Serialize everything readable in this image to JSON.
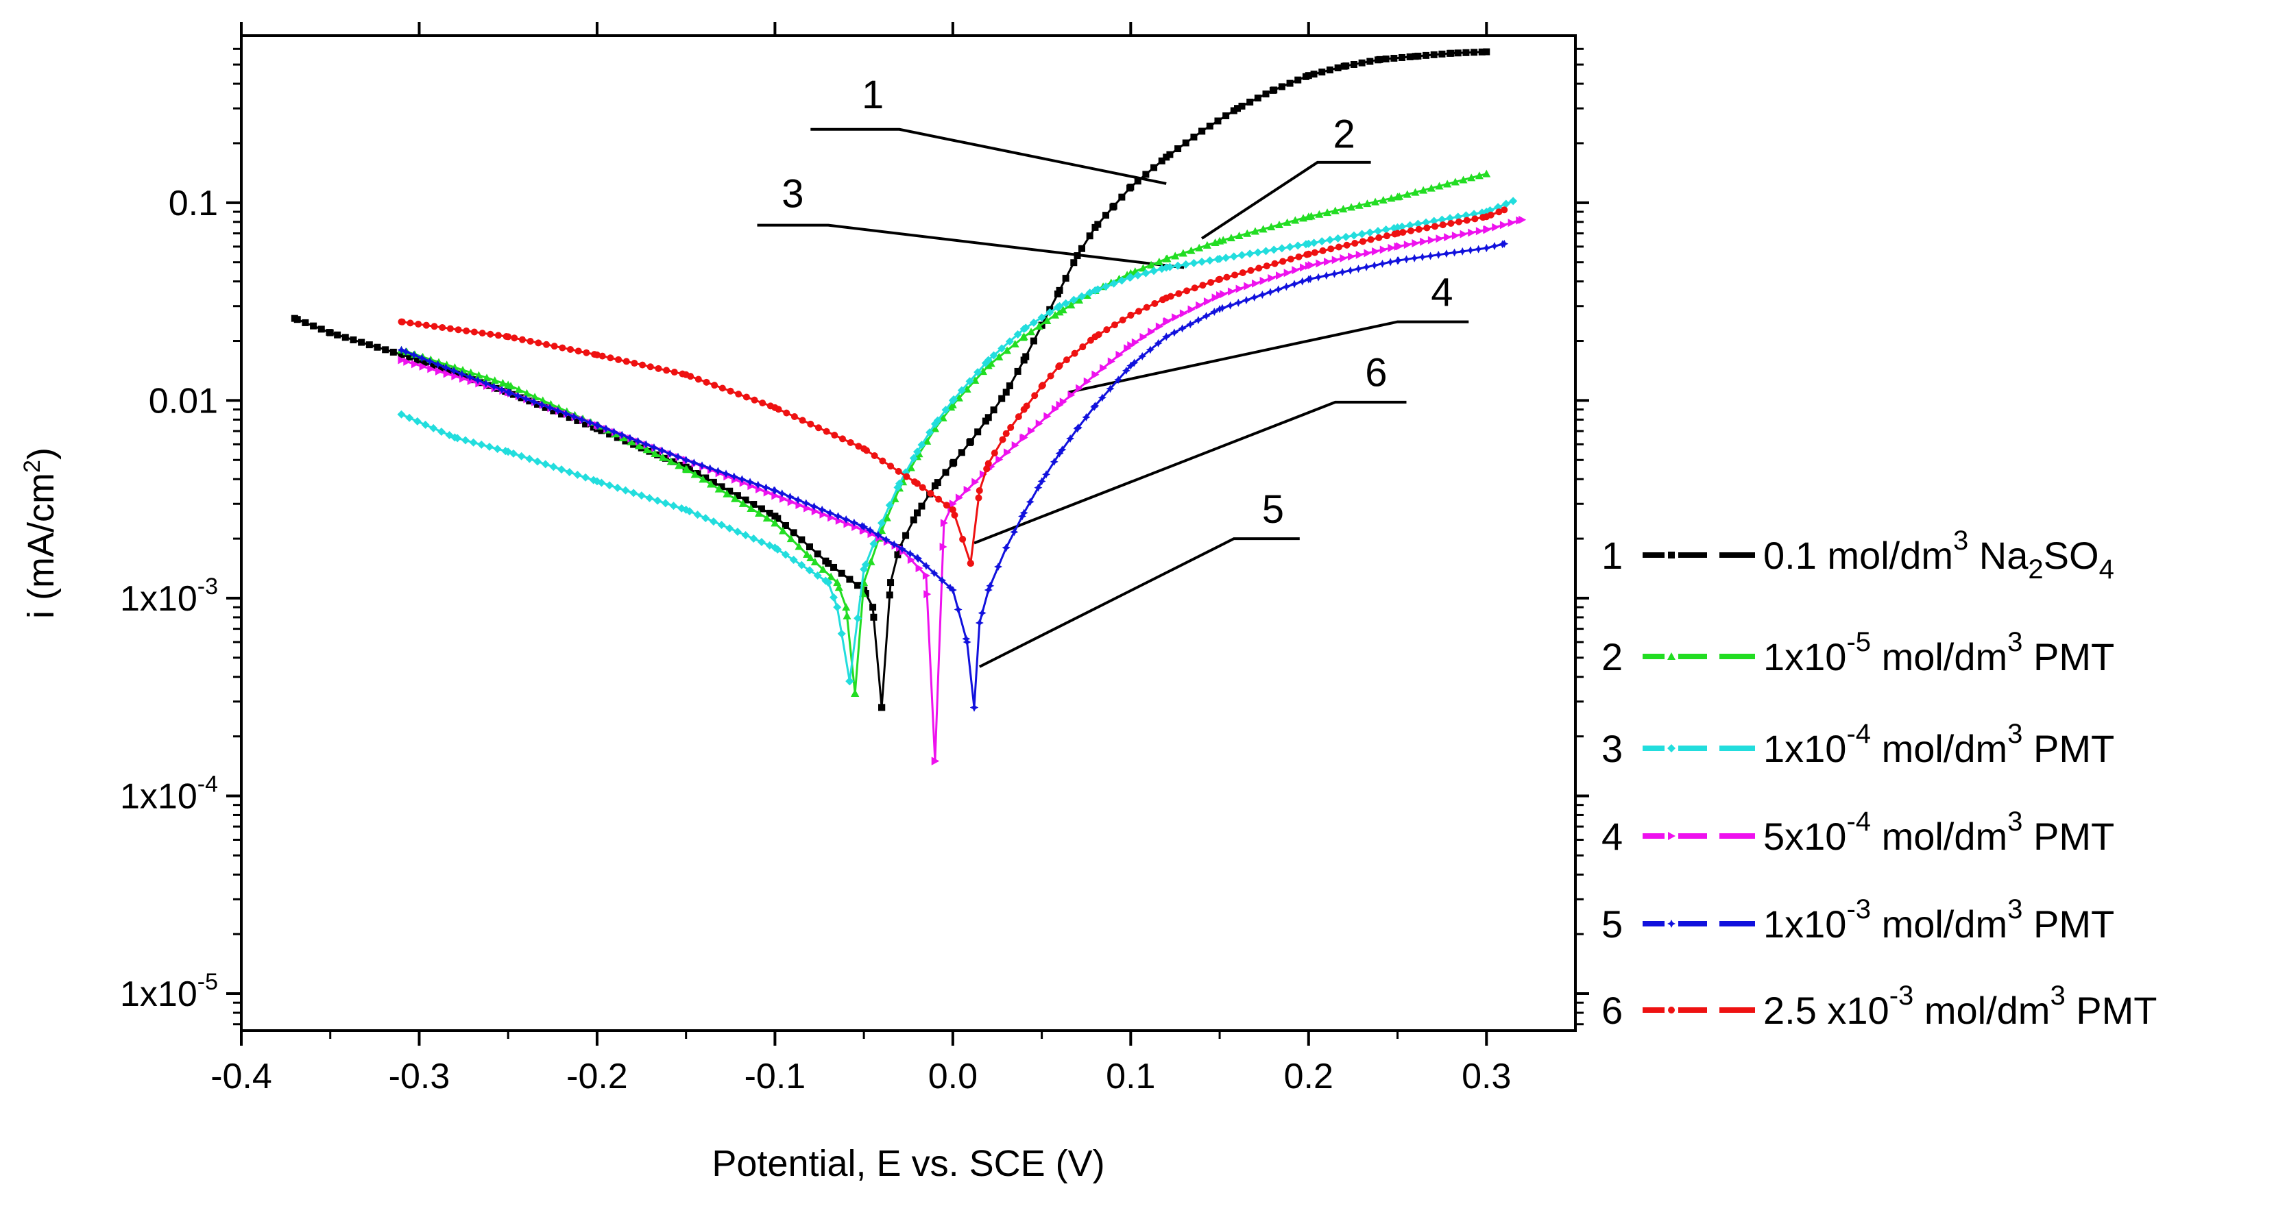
{
  "chart_data": {
    "type": "line",
    "title": "",
    "xlabel": "Potential, E vs. SCE (V)",
    "ylabel_main": "i (mA/cm",
    "ylabel_sup": "2",
    "ylabel_close": ")",
    "xlim": [
      -0.4,
      0.35
    ],
    "ylim": [
      6.5e-06,
      0.7
    ],
    "yscale": "log",
    "x_ticks": [
      {
        "v": -0.4,
        "label": "-0.4"
      },
      {
        "v": -0.3,
        "label": "-0.3"
      },
      {
        "v": -0.2,
        "label": "-0.2"
      },
      {
        "v": -0.1,
        "label": "-0.1"
      },
      {
        "v": 0.0,
        "label": "0.0"
      },
      {
        "v": 0.1,
        "label": "0.1"
      },
      {
        "v": 0.2,
        "label": "0.2"
      },
      {
        "v": 0.3,
        "label": "0.3"
      }
    ],
    "y_ticks": [
      {
        "v": 0.1,
        "text": "0.1",
        "sup": ""
      },
      {
        "v": 0.01,
        "text": "0.01",
        "sup": ""
      },
      {
        "v": 0.001,
        "text": "1x10",
        "sup": "-3"
      },
      {
        "v": 0.0001,
        "text": "1x10",
        "sup": "-4"
      },
      {
        "v": 1e-05,
        "text": "1x10",
        "sup": "-5"
      }
    ],
    "series": [
      {
        "id": "1",
        "color": "#000000",
        "marker": "square",
        "legend": [
          {
            "t": "1 "
          },
          {
            "t": "0.1 mol/dm"
          },
          {
            "t": "3",
            "sup": true
          },
          {
            "t": " Na"
          },
          {
            "t": "2",
            "sub": true
          },
          {
            "t": "SO"
          },
          {
            "t": "4",
            "sub": true
          }
        ],
        "ecorr": -0.04,
        "imin": 0.00028,
        "anodic": [
          [
            -0.04,
            0.00028
          ],
          [
            -0.035,
            0.0012
          ],
          [
            -0.03,
            0.0018
          ],
          [
            -0.02,
            0.0027
          ],
          [
            -0.01,
            0.0037
          ],
          [
            0.0,
            0.0048
          ],
          [
            0.01,
            0.0062
          ],
          [
            0.02,
            0.0082
          ],
          [
            0.03,
            0.011
          ],
          [
            0.04,
            0.016
          ],
          [
            0.05,
            0.024
          ],
          [
            0.06,
            0.036
          ],
          [
            0.07,
            0.054
          ],
          [
            0.08,
            0.075
          ],
          [
            0.09,
            0.095
          ],
          [
            0.1,
            0.12
          ],
          [
            0.12,
            0.17
          ],
          [
            0.14,
            0.23
          ],
          [
            0.16,
            0.3
          ],
          [
            0.18,
            0.37
          ],
          [
            0.2,
            0.44
          ],
          [
            0.22,
            0.49
          ],
          [
            0.24,
            0.53
          ],
          [
            0.26,
            0.55
          ],
          [
            0.28,
            0.57
          ],
          [
            0.3,
            0.58
          ]
        ],
        "cathodic": [
          [
            -0.04,
            0.00028
          ],
          [
            -0.045,
            0.0009
          ],
          [
            -0.05,
            0.0011
          ],
          [
            -0.07,
            0.0015
          ],
          [
            -0.1,
            0.0026
          ],
          [
            -0.15,
            0.0046
          ],
          [
            -0.2,
            0.0072
          ],
          [
            -0.25,
            0.011
          ],
          [
            -0.3,
            0.016
          ],
          [
            -0.35,
            0.022
          ],
          [
            -0.37,
            0.026
          ]
        ]
      },
      {
        "id": "2",
        "color": "#22dd22",
        "marker": "triangle",
        "legend": [
          {
            "t": "2 "
          },
          {
            "t": "1x10"
          },
          {
            "t": "-5",
            "sup": true
          },
          {
            "t": " mol/dm"
          },
          {
            "t": "3",
            "sup": true
          },
          {
            "t": " PMT"
          }
        ],
        "ecorr": -0.055,
        "imin": 0.00033,
        "anodic": [
          [
            -0.055,
            0.00033
          ],
          [
            -0.05,
            0.0012
          ],
          [
            -0.04,
            0.0022
          ],
          [
            -0.03,
            0.0036
          ],
          [
            -0.02,
            0.0052
          ],
          [
            -0.01,
            0.0072
          ],
          [
            0.0,
            0.0095
          ],
          [
            0.02,
            0.015
          ],
          [
            0.04,
            0.021
          ],
          [
            0.06,
            0.028
          ],
          [
            0.08,
            0.036
          ],
          [
            0.1,
            0.044
          ],
          [
            0.12,
            0.052
          ],
          [
            0.15,
            0.064
          ],
          [
            0.2,
            0.085
          ],
          [
            0.25,
            0.107
          ],
          [
            0.3,
            0.14
          ]
        ],
        "cathodic": [
          [
            -0.055,
            0.00033
          ],
          [
            -0.06,
            0.0009
          ],
          [
            -0.065,
            0.0012
          ],
          [
            -0.08,
            0.0016
          ],
          [
            -0.1,
            0.0024
          ],
          [
            -0.15,
            0.0045
          ],
          [
            -0.2,
            0.0075
          ],
          [
            -0.25,
            0.012
          ],
          [
            -0.31,
            0.018
          ]
        ]
      },
      {
        "id": "3",
        "color": "#22dddd",
        "marker": "diamond",
        "legend": [
          {
            "t": "3 "
          },
          {
            "t": "1x10"
          },
          {
            "t": "-4",
            "sup": true
          },
          {
            "t": " mol/dm"
          },
          {
            "t": "3",
            "sup": true
          },
          {
            "t": " PMT"
          }
        ],
        "ecorr": -0.058,
        "imin": 0.00038,
        "anodic": [
          [
            -0.058,
            0.00038
          ],
          [
            -0.05,
            0.0014
          ],
          [
            -0.04,
            0.0024
          ],
          [
            -0.03,
            0.0038
          ],
          [
            -0.02,
            0.0055
          ],
          [
            -0.01,
            0.0076
          ],
          [
            0.0,
            0.01
          ],
          [
            0.02,
            0.016
          ],
          [
            0.04,
            0.023
          ],
          [
            0.06,
            0.03
          ],
          [
            0.08,
            0.036
          ],
          [
            0.1,
            0.042
          ],
          [
            0.12,
            0.047
          ],
          [
            0.15,
            0.052
          ],
          [
            0.2,
            0.062
          ],
          [
            0.25,
            0.075
          ],
          [
            0.3,
            0.09
          ],
          [
            0.315,
            0.102
          ]
        ],
        "cathodic": [
          [
            -0.058,
            0.00038
          ],
          [
            -0.065,
            0.0009
          ],
          [
            -0.07,
            0.0012
          ],
          [
            -0.1,
            0.0018
          ],
          [
            -0.15,
            0.0028
          ],
          [
            -0.2,
            0.0039
          ],
          [
            -0.25,
            0.0055
          ],
          [
            -0.28,
            0.0065
          ],
          [
            -0.31,
            0.0085
          ]
        ]
      },
      {
        "id": "4",
        "color": "#ee11ee",
        "marker": "tri-right",
        "legend": [
          {
            "t": "4 "
          },
          {
            "t": "5x10"
          },
          {
            "t": "-4",
            "sup": true
          },
          {
            "t": " mol/dm"
          },
          {
            "t": "3",
            "sup": true
          },
          {
            "t": " PMT"
          }
        ],
        "ecorr": -0.01,
        "imin": 0.00015,
        "anodic": [
          [
            -0.01,
            0.00015
          ],
          [
            -0.005,
            0.0024
          ],
          [
            0.0,
            0.003
          ],
          [
            0.02,
            0.0045
          ],
          [
            0.04,
            0.0065
          ],
          [
            0.06,
            0.0095
          ],
          [
            0.08,
            0.0135
          ],
          [
            0.1,
            0.019
          ],
          [
            0.12,
            0.025
          ],
          [
            0.15,
            0.034
          ],
          [
            0.2,
            0.048
          ],
          [
            0.25,
            0.06
          ],
          [
            0.3,
            0.073
          ],
          [
            0.32,
            0.082
          ]
        ],
        "cathodic": [
          [
            -0.01,
            0.00015
          ],
          [
            -0.015,
            0.0013
          ],
          [
            -0.03,
            0.0018
          ],
          [
            -0.05,
            0.0022
          ],
          [
            -0.1,
            0.0033
          ],
          [
            -0.15,
            0.005
          ],
          [
            -0.2,
            0.0075
          ],
          [
            -0.25,
            0.011
          ],
          [
            -0.31,
            0.016
          ]
        ]
      },
      {
        "id": "5",
        "color": "#1111dd",
        "marker": "star",
        "legend": [
          {
            "t": "5 "
          },
          {
            "t": "1x10"
          },
          {
            "t": "-3",
            "sup": true
          },
          {
            "t": " mol/dm"
          },
          {
            "t": "3",
            "sup": true
          },
          {
            "t": " PMT"
          }
        ],
        "ecorr": 0.012,
        "imin": 0.00028,
        "anodic": [
          [
            0.012,
            0.00028
          ],
          [
            0.015,
            0.00075
          ],
          [
            0.02,
            0.0011
          ],
          [
            0.03,
            0.0018
          ],
          [
            0.04,
            0.0027
          ],
          [
            0.05,
            0.0039
          ],
          [
            0.06,
            0.0054
          ],
          [
            0.07,
            0.0072
          ],
          [
            0.08,
            0.0094
          ],
          [
            0.1,
            0.015
          ],
          [
            0.12,
            0.021
          ],
          [
            0.15,
            0.029
          ],
          [
            0.2,
            0.041
          ],
          [
            0.25,
            0.051
          ],
          [
            0.3,
            0.059
          ],
          [
            0.31,
            0.062
          ]
        ],
        "cathodic": [
          [
            0.012,
            0.00028
          ],
          [
            0.008,
            0.0006
          ],
          [
            0.0,
            0.0011
          ],
          [
            -0.02,
            0.0016
          ],
          [
            -0.05,
            0.0023
          ],
          [
            -0.1,
            0.0035
          ],
          [
            -0.15,
            0.005
          ],
          [
            -0.2,
            0.0075
          ],
          [
            -0.25,
            0.011
          ],
          [
            -0.31,
            0.018
          ]
        ]
      },
      {
        "id": "6",
        "color": "#ee1111",
        "marker": "circle",
        "legend": [
          {
            "t": "6 "
          },
          {
            "t": "2.5 x10"
          },
          {
            "t": "-3",
            "sup": true
          },
          {
            "t": " mol/dm"
          },
          {
            "t": "3",
            "sup": true
          },
          {
            "t": " PMT"
          }
        ],
        "ecorr": 0.01,
        "imin": 0.0015,
        "anodic": [
          [
            0.01,
            0.0015
          ],
          [
            0.015,
            0.0035
          ],
          [
            0.02,
            0.0048
          ],
          [
            0.03,
            0.0068
          ],
          [
            0.04,
            0.009
          ],
          [
            0.05,
            0.0118
          ],
          [
            0.06,
            0.015
          ],
          [
            0.08,
            0.021
          ],
          [
            0.1,
            0.027
          ],
          [
            0.12,
            0.033
          ],
          [
            0.15,
            0.041
          ],
          [
            0.2,
            0.055
          ],
          [
            0.25,
            0.07
          ],
          [
            0.3,
            0.085
          ],
          [
            0.31,
            0.092
          ]
        ],
        "cathodic": [
          [
            0.01,
            0.0015
          ],
          [
            0.0,
            0.0028
          ],
          [
            -0.02,
            0.0038
          ],
          [
            -0.05,
            0.0057
          ],
          [
            -0.1,
            0.0092
          ],
          [
            -0.15,
            0.0135
          ],
          [
            -0.2,
            0.017
          ],
          [
            -0.25,
            0.021
          ],
          [
            -0.31,
            0.025
          ]
        ]
      }
    ],
    "annotations": [
      {
        "label": "1",
        "series": "1",
        "text_xy": [
          -0.045,
          0.3
        ],
        "line": [
          [
            -0.08,
            0.235
          ],
          [
            -0.03,
            0.235
          ],
          [
            0.12,
            0.125
          ]
        ]
      },
      {
        "label": "2",
        "series": "2",
        "text_xy": [
          0.22,
          0.19
        ],
        "line": [
          [
            0.235,
            0.16
          ],
          [
            0.205,
            0.16
          ],
          [
            0.14,
            0.066
          ]
        ]
      },
      {
        "label": "3",
        "series": "3",
        "text_xy": [
          -0.09,
          0.095
        ],
        "line": [
          [
            -0.11,
            0.077
          ],
          [
            -0.07,
            0.077
          ],
          [
            0.13,
            0.047
          ]
        ]
      },
      {
        "label": "4",
        "series": "4",
        "text_xy": [
          0.275,
          0.03
        ],
        "line": [
          [
            0.29,
            0.025
          ],
          [
            0.25,
            0.025
          ],
          [
            0.065,
            0.011
          ]
        ]
      },
      {
        "label": "5",
        "series": "5",
        "text_xy": [
          0.18,
          0.0024
        ],
        "line": [
          [
            0.195,
            0.002
          ],
          [
            0.158,
            0.002
          ],
          [
            0.015,
            0.00045
          ]
        ]
      },
      {
        "label": "6",
        "series": "6",
        "text_xy": [
          0.238,
          0.0118
        ],
        "line": [
          [
            0.255,
            0.0098
          ],
          [
            0.215,
            0.0098
          ],
          [
            0.012,
            0.0019
          ]
        ]
      }
    ]
  }
}
